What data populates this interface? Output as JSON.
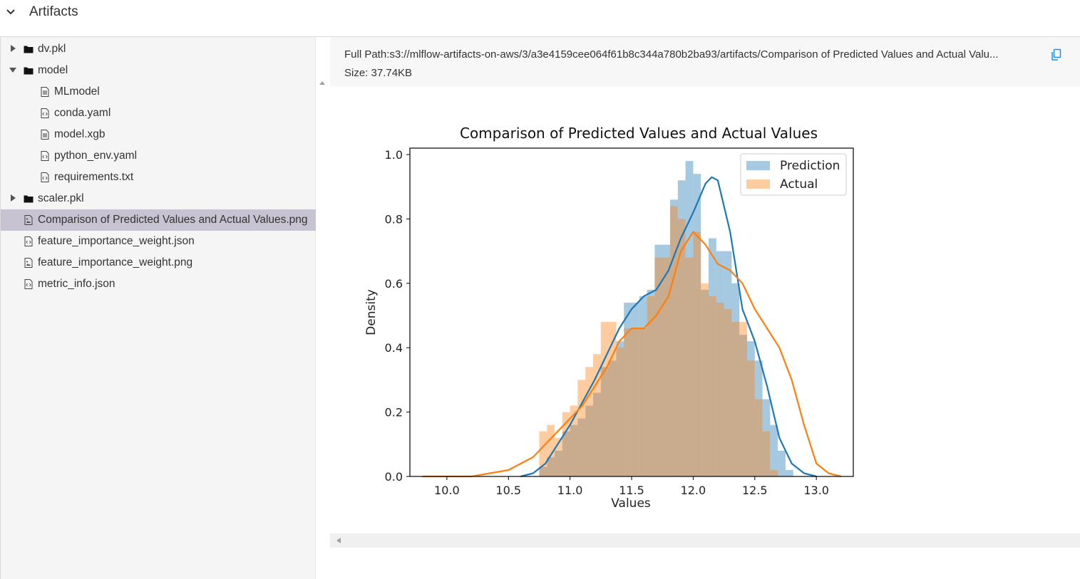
{
  "header": {
    "title": "Artifacts",
    "toggle_icon": "chevron-down-icon"
  },
  "tree": {
    "items": [
      {
        "label": "dv.pkl",
        "kind": "folder",
        "expanded": false,
        "depth": 0,
        "icon": "folder-icon"
      },
      {
        "label": "model",
        "kind": "folder",
        "expanded": true,
        "depth": 0,
        "icon": "folder-icon"
      },
      {
        "label": "MLmodel",
        "kind": "file",
        "depth": 1,
        "icon": "text-file-icon"
      },
      {
        "label": "conda.yaml",
        "kind": "file",
        "depth": 1,
        "icon": "code-file-icon"
      },
      {
        "label": "model.xgb",
        "kind": "file",
        "depth": 1,
        "icon": "text-file-icon"
      },
      {
        "label": "python_env.yaml",
        "kind": "file",
        "depth": 1,
        "icon": "code-file-icon"
      },
      {
        "label": "requirements.txt",
        "kind": "file",
        "depth": 1,
        "icon": "code-file-icon"
      },
      {
        "label": "scaler.pkl",
        "kind": "folder",
        "expanded": false,
        "depth": 0,
        "icon": "folder-icon"
      },
      {
        "label": "Comparison of Predicted Values and Actual Values.png",
        "kind": "file",
        "depth": 0,
        "icon": "image-file-icon",
        "selected": true
      },
      {
        "label": "feature_importance_weight.json",
        "kind": "file",
        "depth": 0,
        "icon": "code-file-icon"
      },
      {
        "label": "feature_importance_weight.png",
        "kind": "file",
        "depth": 0,
        "icon": "image-file-icon"
      },
      {
        "label": "metric_info.json",
        "kind": "file",
        "depth": 0,
        "icon": "code-file-icon"
      }
    ]
  },
  "artifact": {
    "full_path": "Full Path:s3://mlflow-artifacts-on-aws/3/a3e4159cee064f61b8c344a780b2ba93/artifacts/Comparison of Predicted Values and Actual Valu...",
    "size": "Size: 37.74KB",
    "copy_icon": "copy-icon"
  },
  "colors": {
    "prediction": "#1f77b4",
    "actual": "#ff7f0e",
    "selected_row": "#c8c3d2",
    "accent": "#1890ff"
  },
  "chart_data": {
    "type": "histogram",
    "title": "Comparison of Predicted Values and Actual Values",
    "xlabel": "Values",
    "ylabel": "Density",
    "xlim": [
      9.7,
      13.3
    ],
    "ylim": [
      0,
      1.02
    ],
    "xticks": [
      "10.0",
      "10.5",
      "11.0",
      "11.5",
      "12.0",
      "12.5",
      "13.0"
    ],
    "yticks": [
      "0.0",
      "0.2",
      "0.4",
      "0.6",
      "0.8",
      "1.0"
    ],
    "legend": {
      "placement": "top-right",
      "entries": [
        "Prediction",
        "Actual"
      ]
    },
    "bin_width": 0.0625,
    "series": [
      {
        "name": "Prediction",
        "bin_start": 10.75,
        "hist": [
          0.03,
          0.06,
          0.08,
          0.14,
          0.16,
          0.18,
          0.22,
          0.26,
          0.34,
          0.36,
          0.42,
          0.54,
          0.54,
          0.56,
          0.58,
          0.72,
          0.72,
          0.86,
          0.92,
          0.98,
          0.94,
          0.58,
          0.74,
          0.7,
          0.7,
          0.6,
          0.44,
          0.42,
          0.36,
          0.24,
          0.16,
          0.08,
          0.02
        ],
        "kde_x": [
          10.6,
          10.7,
          10.8,
          10.9,
          11.0,
          11.1,
          11.2,
          11.3,
          11.4,
          11.5,
          11.6,
          11.7,
          11.8,
          11.9,
          12.0,
          12.1,
          12.15,
          12.2,
          12.3,
          12.4,
          12.5,
          12.6,
          12.7,
          12.8,
          12.9,
          13.0
        ],
        "kde_y": [
          0.0,
          0.01,
          0.04,
          0.1,
          0.16,
          0.23,
          0.3,
          0.38,
          0.46,
          0.52,
          0.56,
          0.58,
          0.64,
          0.74,
          0.82,
          0.91,
          0.93,
          0.92,
          0.76,
          0.52,
          0.42,
          0.28,
          0.12,
          0.04,
          0.01,
          0.0
        ]
      },
      {
        "name": "Actual",
        "bin_start": 10.75,
        "hist": [
          0.14,
          0.16,
          0.12,
          0.2,
          0.22,
          0.3,
          0.34,
          0.38,
          0.48,
          0.48,
          0.4,
          0.46,
          0.46,
          0.46,
          0.56,
          0.68,
          0.68,
          0.84,
          0.8,
          0.68,
          0.76,
          0.6,
          0.56,
          0.54,
          0.52,
          0.48,
          0.48,
          0.36,
          0.24,
          0.14,
          0.02
        ],
        "kde_x": [
          9.8,
          10.2,
          10.5,
          10.7,
          10.9,
          11.1,
          11.3,
          11.4,
          11.5,
          11.6,
          11.7,
          11.8,
          11.9,
          12.0,
          12.1,
          12.2,
          12.3,
          12.4,
          12.5,
          12.6,
          12.7,
          12.8,
          12.9,
          13.0,
          13.1,
          13.2
        ],
        "kde_y": [
          0.0,
          0.0,
          0.02,
          0.06,
          0.14,
          0.22,
          0.34,
          0.42,
          0.46,
          0.46,
          0.5,
          0.56,
          0.7,
          0.76,
          0.72,
          0.66,
          0.64,
          0.6,
          0.52,
          0.46,
          0.4,
          0.3,
          0.16,
          0.04,
          0.01,
          0.0
        ]
      }
    ]
  }
}
